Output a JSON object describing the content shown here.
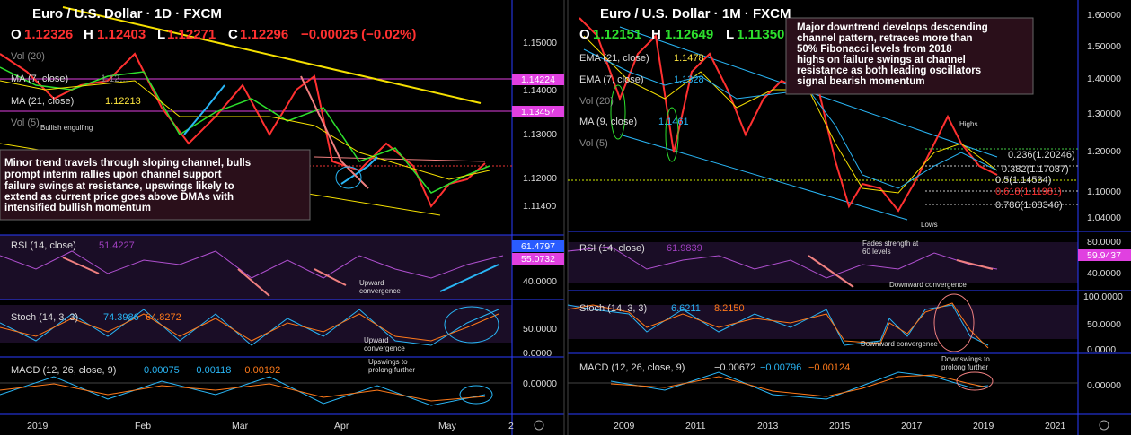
{
  "left": {
    "title": "Euro / U.S. Dollar · 1D · FXCM",
    "ohlc": [
      {
        "label": "O",
        "value": "1.12326"
      },
      {
        "label": "H",
        "value": "1.12403"
      },
      {
        "label": "L",
        "value": "1.12271"
      },
      {
        "label": "C",
        "value": "1.12296"
      }
    ],
    "change": "−0.00025 (−0.02%)",
    "indicators": [
      {
        "label": "Vol (20)"
      },
      {
        "label": "MA (7, close)",
        "value": "1.12..."
      },
      {
        "label": "MA (21, close)",
        "value": "1.12213"
      },
      {
        "label": "Vol (5)"
      }
    ],
    "price_ticks": [
      "1.15000",
      "1.14000",
      "1.13000",
      "1.12000",
      "1.11400"
    ],
    "badges": [
      "1.14224",
      "1.13457",
      "61.4797",
      "55.0732"
    ],
    "rsi": {
      "label": "RSI (14, close)",
      "value": "51.4227",
      "tick": "40.0000"
    },
    "stoch": {
      "label": "Stoch (14, 3, 3)",
      "values": [
        "74.3986",
        "64.8272"
      ],
      "ticks": [
        "50.0000",
        "0.0000"
      ]
    },
    "macd": {
      "label": "MACD (12, 26, close, 9)",
      "values": [
        "0.00075",
        "−0.00118",
        "−0.00192"
      ],
      "tick": "0.00000"
    },
    "time_labels": [
      "2019",
      "Feb",
      "Mar",
      "Apr",
      "May",
      "2"
    ],
    "annotation": [
      "Minor trend travels through sloping channel, bulls",
      "prompt interim rallies upon channel support",
      "failure swings at resistance, upswings likely to",
      "extend as current price goes above DMAs with",
      "intensified bullish momentum"
    ],
    "notes": {
      "engulfing": "Bullish engulfing",
      "rsi_conv": [
        "Upward",
        "convergence"
      ],
      "stoch_conv": [
        "Upward",
        "convergence"
      ],
      "macd_up": [
        "Upswings to",
        "prolong further"
      ]
    }
  },
  "right": {
    "title": "Euro / U.S. Dollar · 1M · FXCM",
    "ohlc": [
      {
        "label": "O",
        "value": "1.12151"
      },
      {
        "label": "H",
        "value": "1.12649"
      },
      {
        "label": "L",
        "value": "1.11350"
      }
    ],
    "indicators": [
      {
        "label": "EMA (21, close)",
        "value": "1.1478"
      },
      {
        "label": "EMA (7, close)",
        "value": "1.1328"
      },
      {
        "label": "Vol (20)"
      },
      {
        "label": "MA (9, close)",
        "value": "1.1461"
      },
      {
        "label": "Vol (5)"
      }
    ],
    "price_ticks": [
      "1.60000",
      "1.50000",
      "1.40000",
      "1.30000",
      "1.20000",
      "1.10000",
      "1.04000"
    ],
    "fib": [
      "0.236(1.20246)",
      "0.382(1.17087)",
      "0.5(1.14534)",
      "0.618(1.11981)",
      "0.786(1.08346)"
    ],
    "highs": "Highs",
    "lows": "Lows",
    "rsi": {
      "label": "RSI (14, close)",
      "value": "61.9839",
      "ticks": [
        "80.0000",
        "40.0000"
      ],
      "badge": "59.9437"
    },
    "stoch": {
      "label": "Stoch (14, 3, 3)",
      "values": [
        "6.6211",
        "8.2150"
      ],
      "ticks": [
        "100.0000",
        "50.0000",
        "0.0000"
      ]
    },
    "macd": {
      "label": "MACD (12, 26, close, 9)",
      "values": [
        "−0.00672",
        "−0.00796",
        "−0.00124"
      ],
      "tick": "0.00000"
    },
    "time_labels": [
      "2009",
      "2011",
      "2013",
      "2015",
      "2017",
      "2019",
      "2021"
    ],
    "annotation": [
      "Major downtrend develops descending",
      "channel pattern, retraces more than",
      "50% Fibonacci levels from 2018",
      "highs on failure swings at channel",
      "resistance as both leading oscillators",
      "signal bearish momentum"
    ],
    "notes": {
      "rsi_fade": [
        "Fades strength at",
        "60 levels"
      ],
      "rsi_conv": "Downward convergence",
      "stoch_conv": "Downward convergence",
      "macd_down": [
        "Downswings to",
        "prolong further"
      ]
    }
  }
}
